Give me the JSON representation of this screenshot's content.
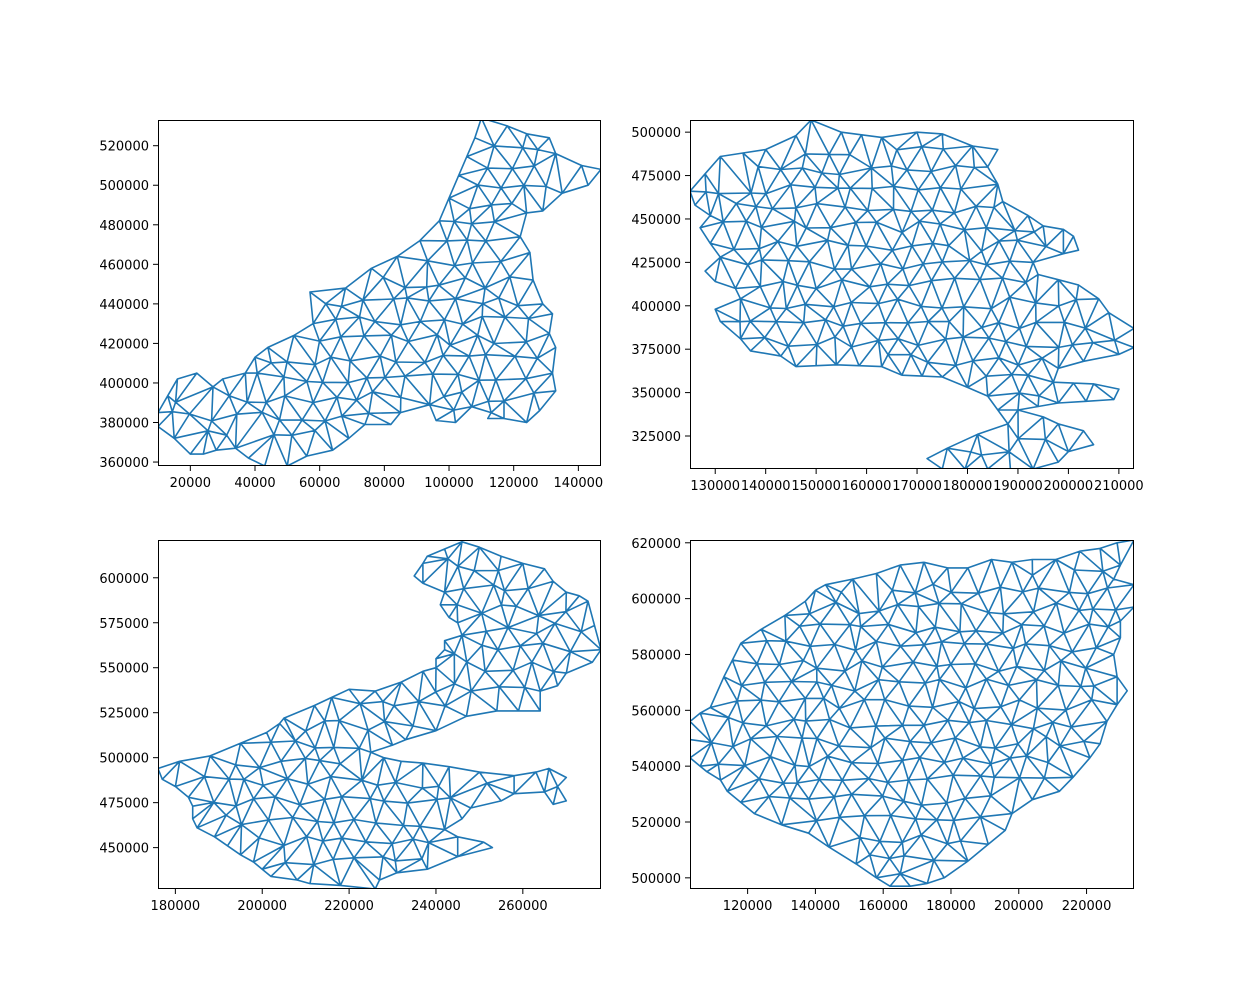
{
  "colors": {
    "mesh": "#1f77b4",
    "axes": "#000000",
    "background": "#ffffff"
  },
  "chart_data": [
    {
      "type": "triangulation mesh",
      "title": "",
      "xlabel": "",
      "ylabel": "",
      "xlim": [
        10000,
        147000
      ],
      "ylim": [
        358000,
        533000
      ],
      "xticks": [
        20000,
        40000,
        60000,
        80000,
        100000,
        120000,
        140000
      ],
      "yticks": [
        360000,
        380000,
        400000,
        420000,
        440000,
        460000,
        480000,
        500000,
        520000
      ],
      "xtick_labels": [
        "20000",
        "40000",
        "60000",
        "80000",
        "100000",
        "120000",
        "140000"
      ],
      "ytick_labels": [
        "360000",
        "380000",
        "400000",
        "420000",
        "440000",
        "460000",
        "480000",
        "500000",
        "520000"
      ],
      "outline": [
        [
          10000,
          385000
        ],
        [
          16000,
          402000
        ],
        [
          22000,
          405000
        ],
        [
          27000,
          398000
        ],
        [
          30000,
          402000
        ],
        [
          37000,
          405000
        ],
        [
          40000,
          413000
        ],
        [
          44000,
          418000
        ],
        [
          52000,
          424000
        ],
        [
          58000,
          430000
        ],
        [
          57000,
          446000
        ],
        [
          68000,
          448000
        ],
        [
          76000,
          458000
        ],
        [
          84000,
          464000
        ],
        [
          91000,
          472000
        ],
        [
          97000,
          482000
        ],
        [
          103000,
          505000
        ],
        [
          108000,
          524000
        ],
        [
          110000,
          534000
        ],
        [
          118000,
          530000
        ],
        [
          124000,
          526000
        ],
        [
          131000,
          524000
        ],
        [
          133000,
          516000
        ],
        [
          141000,
          510000
        ],
        [
          147000,
          508000
        ],
        [
          143000,
          500000
        ],
        [
          135000,
          496000
        ],
        [
          129000,
          487000
        ],
        [
          124000,
          486000
        ],
        [
          122000,
          474000
        ],
        [
          125000,
          466000
        ],
        [
          126000,
          452000
        ],
        [
          129000,
          440000
        ],
        [
          132000,
          435000
        ],
        [
          131000,
          425000
        ],
        [
          133000,
          418000
        ],
        [
          132000,
          405000
        ],
        [
          133000,
          396000
        ],
        [
          128000,
          386000
        ],
        [
          124000,
          380000
        ],
        [
          117000,
          382000
        ],
        [
          112000,
          382000
        ],
        [
          113000,
          385000
        ],
        [
          107000,
          388000
        ],
        [
          102000,
          380000
        ],
        [
          96000,
          381000
        ],
        [
          94000,
          389000
        ],
        [
          85000,
          385000
        ],
        [
          82000,
          379000
        ],
        [
          74000,
          379000
        ],
        [
          69000,
          372000
        ],
        [
          64000,
          366000
        ],
        [
          56000,
          363000
        ],
        [
          50000,
          358000
        ],
        [
          43000,
          358000
        ],
        [
          38000,
          362000
        ],
        [
          34000,
          367000
        ],
        [
          28000,
          366000
        ],
        [
          24000,
          364000
        ],
        [
          20000,
          364000
        ],
        [
          15000,
          372000
        ],
        [
          10000,
          378000
        ]
      ]
    },
    {
      "type": "triangulation mesh",
      "title": "",
      "xlabel": "",
      "ylabel": "",
      "xlim": [
        125000,
        213000
      ],
      "ylim": [
        306000,
        507000
      ],
      "xticks": [
        130000,
        140000,
        150000,
        160000,
        170000,
        180000,
        190000,
        200000,
        210000
      ],
      "yticks": [
        325000,
        350000,
        375000,
        400000,
        425000,
        450000,
        475000,
        500000
      ],
      "xtick_labels": [
        "130000",
        "140000",
        "150000",
        "160000",
        "170000",
        "180000",
        "190000",
        "200000",
        "210000"
      ],
      "ytick_labels": [
        "325000",
        "350000",
        "375000",
        "400000",
        "425000",
        "450000",
        "475000",
        "500000"
      ],
      "outline": [
        [
          125000,
          466000
        ],
        [
          128000,
          476000
        ],
        [
          131000,
          486000
        ],
        [
          140000,
          490000
        ],
        [
          146000,
          498000
        ],
        [
          149000,
          507000
        ],
        [
          155000,
          500000
        ],
        [
          163000,
          497000
        ],
        [
          170000,
          500000
        ],
        [
          175000,
          499000
        ],
        [
          181000,
          492000
        ],
        [
          186000,
          490000
        ],
        [
          184000,
          480000
        ],
        [
          186000,
          470000
        ],
        [
          187000,
          460000
        ],
        [
          192000,
          452000
        ],
        [
          195000,
          446000
        ],
        [
          199000,
          444000
        ],
        [
          201000,
          440000
        ],
        [
          202000,
          432000
        ],
        [
          199000,
          430000
        ],
        [
          193000,
          425000
        ],
        [
          194000,
          418000
        ],
        [
          202000,
          412000
        ],
        [
          206000,
          404000
        ],
        [
          208000,
          396000
        ],
        [
          213000,
          387000
        ],
        [
          213000,
          376000
        ],
        [
          210000,
          372000
        ],
        [
          203000,
          368000
        ],
        [
          198000,
          364000
        ],
        [
          192000,
          360000
        ],
        [
          197000,
          356000
        ],
        [
          205000,
          355000
        ],
        [
          210000,
          352000
        ],
        [
          209000,
          346000
        ],
        [
          198000,
          344000
        ],
        [
          190000,
          340000
        ],
        [
          195000,
          336000
        ],
        [
          198000,
          332000
        ],
        [
          203000,
          328000
        ],
        [
          205000,
          320000
        ],
        [
          200000,
          316000
        ],
        [
          198000,
          310000
        ],
        [
          193000,
          306000
        ],
        [
          175000,
          306000
        ],
        [
          172000,
          312000
        ],
        [
          176000,
          318000
        ],
        [
          182000,
          326000
        ],
        [
          188000,
          332000
        ],
        [
          186000,
          340000
        ],
        [
          184000,
          348000
        ],
        [
          180000,
          353000
        ],
        [
          175000,
          359000
        ],
        [
          167000,
          360000
        ],
        [
          163000,
          365000
        ],
        [
          154000,
          366000
        ],
        [
          146000,
          365000
        ],
        [
          143000,
          371000
        ],
        [
          137000,
          374000
        ],
        [
          135000,
          381000
        ],
        [
          131000,
          391000
        ],
        [
          130000,
          398000
        ],
        [
          135000,
          404000
        ],
        [
          134000,
          410000
        ],
        [
          130000,
          414000
        ],
        [
          128000,
          420000
        ],
        [
          131000,
          428000
        ],
        [
          129000,
          436000
        ],
        [
          127000,
          445000
        ],
        [
          129000,
          452000
        ],
        [
          126000,
          458000
        ]
      ]
    },
    {
      "type": "triangulation mesh",
      "title": "",
      "xlabel": "",
      "ylabel": "",
      "xlim": [
        176000,
        278000
      ],
      "ylim": [
        427000,
        621000
      ],
      "xticks": [
        180000,
        200000,
        220000,
        240000,
        260000
      ],
      "yticks": [
        450000,
        475000,
        500000,
        525000,
        550000,
        575000,
        600000
      ],
      "xtick_labels": [
        "180000",
        "200000",
        "220000",
        "240000",
        "260000"
      ],
      "ytick_labels": [
        "450000",
        "475000",
        "500000",
        "525000",
        "550000",
        "575000",
        "600000"
      ],
      "outline": [
        [
          176000,
          494000
        ],
        [
          181000,
          498000
        ],
        [
          188000,
          501000
        ],
        [
          195000,
          508000
        ],
        [
          201000,
          514000
        ],
        [
          204000,
          519000
        ],
        [
          205000,
          522000
        ],
        [
          212000,
          529000
        ],
        [
          220000,
          538000
        ],
        [
          226000,
          537000
        ],
        [
          232000,
          542000
        ],
        [
          237000,
          548000
        ],
        [
          240000,
          550000
        ],
        [
          240000,
          555000
        ],
        [
          242000,
          560000
        ],
        [
          242000,
          565000
        ],
        [
          246000,
          568000
        ],
        [
          245000,
          575000
        ],
        [
          243000,
          578000
        ],
        [
          241000,
          585000
        ],
        [
          242000,
          592000
        ],
        [
          237000,
          597000
        ],
        [
          235000,
          601000
        ],
        [
          237000,
          608000
        ],
        [
          238000,
          612000
        ],
        [
          242000,
          616000
        ],
        [
          246000,
          620000
        ],
        [
          250000,
          617000
        ],
        [
          255000,
          612000
        ],
        [
          260000,
          608000
        ],
        [
          265000,
          605000
        ],
        [
          267000,
          598000
        ],
        [
          270000,
          592000
        ],
        [
          273000,
          590000
        ],
        [
          275000,
          587000
        ],
        [
          278000,
          560000
        ],
        [
          276000,
          553000
        ],
        [
          270000,
          547000
        ],
        [
          268000,
          540000
        ],
        [
          264000,
          537000
        ],
        [
          264000,
          526000
        ],
        [
          254000,
          526000
        ],
        [
          247000,
          523000
        ],
        [
          240000,
          515000
        ],
        [
          233000,
          510000
        ],
        [
          230000,
          507000
        ],
        [
          225000,
          503000
        ],
        [
          228000,
          500000
        ],
        [
          232000,
          498000
        ],
        [
          237000,
          497000
        ],
        [
          243000,
          495000
        ],
        [
          250000,
          492000
        ],
        [
          258000,
          490000
        ],
        [
          263000,
          492000
        ],
        [
          266000,
          494000
        ],
        [
          270000,
          489000
        ],
        [
          268000,
          484000
        ],
        [
          270000,
          476000
        ],
        [
          267000,
          474000
        ],
        [
          265000,
          481000
        ],
        [
          258000,
          480000
        ],
        [
          255000,
          476000
        ],
        [
          248000,
          472000
        ],
        [
          246000,
          466000
        ],
        [
          242000,
          460000
        ],
        [
          245000,
          456000
        ],
        [
          251000,
          453000
        ],
        [
          253000,
          450000
        ],
        [
          245000,
          445000
        ],
        [
          238000,
          438000
        ],
        [
          231000,
          436000
        ],
        [
          227000,
          432000
        ],
        [
          226000,
          427000
        ],
        [
          218000,
          429000
        ],
        [
          211000,
          430000
        ],
        [
          208000,
          432000
        ],
        [
          202000,
          434000
        ],
        [
          200000,
          438000
        ],
        [
          198000,
          442000
        ],
        [
          195000,
          446000
        ],
        [
          192000,
          451000
        ],
        [
          189000,
          456000
        ],
        [
          185000,
          461000
        ],
        [
          184000,
          466000
        ],
        [
          184000,
          473000
        ],
        [
          183000,
          478000
        ],
        [
          180000,
          484000
        ],
        [
          177000,
          488000
        ]
      ]
    },
    {
      "type": "triangulation mesh",
      "title": "",
      "xlabel": "",
      "ylabel": "",
      "xlim": [
        103000,
        234000
      ],
      "ylim": [
        496000,
        621000
      ],
      "xticks": [
        120000,
        140000,
        160000,
        180000,
        200000,
        220000
      ],
      "yticks": [
        500000,
        520000,
        540000,
        560000,
        580000,
        600000,
        620000
      ],
      "xtick_labels": [
        "120000",
        "140000",
        "160000",
        "180000",
        "200000",
        "220000"
      ],
      "ytick_labels": [
        "500000",
        "520000",
        "540000",
        "560000",
        "580000",
        "600000",
        "620000"
      ],
      "outline": [
        [
          103000,
          556000
        ],
        [
          106000,
          559000
        ],
        [
          109000,
          561000
        ],
        [
          113000,
          572000
        ],
        [
          118000,
          584000
        ],
        [
          124000,
          589000
        ],
        [
          131000,
          594000
        ],
        [
          137000,
          599000
        ],
        [
          140000,
          603000
        ],
        [
          143000,
          605000
        ],
        [
          151000,
          607000
        ],
        [
          158000,
          609000
        ],
        [
          165000,
          612000
        ],
        [
          172000,
          613000
        ],
        [
          179000,
          611000
        ],
        [
          185000,
          611000
        ],
        [
          192000,
          614000
        ],
        [
          198000,
          613000
        ],
        [
          204000,
          614000
        ],
        [
          211000,
          614000
        ],
        [
          218000,
          617000
        ],
        [
          224000,
          618000
        ],
        [
          229000,
          620000
        ],
        [
          234000,
          621000
        ],
        [
          230000,
          612000
        ],
        [
          228000,
          607000
        ],
        [
          234000,
          605000
        ],
        [
          234000,
          597000
        ],
        [
          230000,
          592000
        ],
        [
          230000,
          586000
        ],
        [
          228000,
          580000
        ],
        [
          229000,
          572000
        ],
        [
          232000,
          567000
        ],
        [
          229000,
          562000
        ],
        [
          226000,
          556000
        ],
        [
          224000,
          548000
        ],
        [
          221000,
          543000
        ],
        [
          216000,
          536000
        ],
        [
          212000,
          531000
        ],
        [
          204000,
          528000
        ],
        [
          198000,
          523000
        ],
        [
          196000,
          517000
        ],
        [
          191000,
          512000
        ],
        [
          185000,
          506000
        ],
        [
          178000,
          500000
        ],
        [
          173000,
          498000
        ],
        [
          168000,
          497000
        ],
        [
          162000,
          497000
        ],
        [
          158000,
          500000
        ],
        [
          152000,
          505000
        ],
        [
          144000,
          511000
        ],
        [
          138000,
          516000
        ],
        [
          130000,
          519000
        ],
        [
          122000,
          523000
        ],
        [
          118000,
          527000
        ],
        [
          114000,
          531000
        ],
        [
          112000,
          535000
        ],
        [
          108000,
          538000
        ],
        [
          106000,
          540000
        ],
        [
          103000,
          543000
        ]
      ]
    }
  ]
}
